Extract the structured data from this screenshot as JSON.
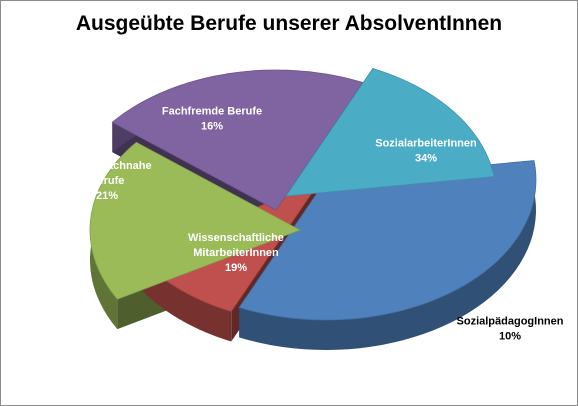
{
  "chart_data": {
    "type": "pie",
    "title": "Ausgeübte Berufe unserer AbsolventInnen",
    "slices": [
      {
        "label_lines": [
          "SozialarbeiterInnen"
        ],
        "value": 34,
        "value_label": "34%",
        "color": "#4f81bd"
      },
      {
        "label_lines": [
          "SozialpädagogInnen"
        ],
        "value": 10,
        "value_label": "10%",
        "color": "#c0504d"
      },
      {
        "label_lines": [
          "Wissenschaftliche",
          "MitarbeiterInnen"
        ],
        "value": 19,
        "value_label": "19%",
        "color": "#9bbb59"
      },
      {
        "label_lines": [
          "Andere fachnahe",
          "Berufe"
        ],
        "value": 21,
        "value_label": "21%",
        "color": "#8064a2"
      },
      {
        "label_lines": [
          "Fachfremde Berufe"
        ],
        "value": 16,
        "value_label": "16%",
        "color": "#4bacc6"
      }
    ],
    "exploded": true,
    "view": "3d",
    "legend": "none",
    "data_labels": "inside"
  }
}
